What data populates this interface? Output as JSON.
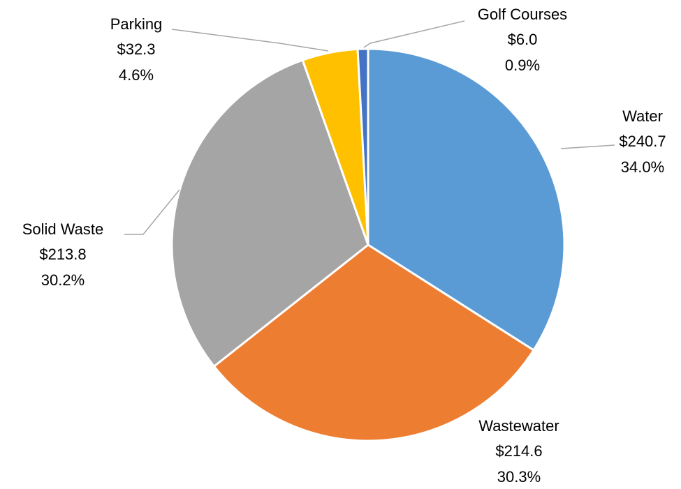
{
  "chart_data": {
    "type": "pie",
    "categories": [
      "Water",
      "Wastewater",
      "Solid Waste",
      "Parking",
      "Golf Courses"
    ],
    "values": [
      240.7,
      214.6,
      213.8,
      32.3,
      6.0
    ],
    "value_labels": [
      "$240.7",
      "$214.6",
      "$213.8",
      "$32.3",
      "$6.0"
    ],
    "percents": [
      34.0,
      30.3,
      30.2,
      4.6,
      0.9
    ],
    "percent_labels": [
      "34.0%",
      "30.3%",
      "30.2%",
      "4.6%",
      "0.9%"
    ],
    "colors": [
      "#5b9bd5",
      "#ed7d31",
      "#a5a5a5",
      "#ffc000",
      "#4472c4"
    ]
  }
}
